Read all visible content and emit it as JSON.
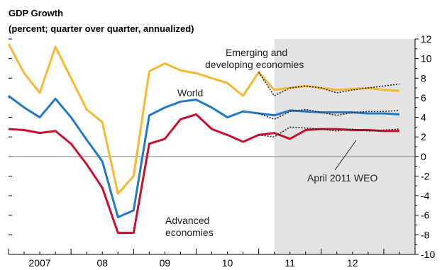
{
  "chart_data": {
    "type": "line",
    "title": "GDP Growth",
    "subtitle": "(percent; quarter over quarter, annualized)",
    "ylim": [
      -10,
      12
    ],
    "y_ticks": [
      -10,
      -8,
      -6,
      -4,
      -2,
      0,
      2,
      4,
      6,
      8,
      10,
      12
    ],
    "x_range": [
      2006.5,
      2013.0
    ],
    "x_tick_labels": [
      {
        "label": "2007",
        "x": 2007.0
      },
      {
        "label": "08",
        "x": 2008.0
      },
      {
        "label": "09",
        "x": 2009.0
      },
      {
        "label": "10",
        "x": 2010.0
      },
      {
        "label": "11",
        "x": 2011.0
      },
      {
        "label": "12",
        "x": 2012.0
      }
    ],
    "projection_start": 2010.75,
    "zero_line": true,
    "x": [
      2006.5,
      2006.75,
      2007.0,
      2007.25,
      2007.5,
      2007.75,
      2008.0,
      2008.25,
      2008.5,
      2008.75,
      2009.0,
      2009.25,
      2009.5,
      2009.75,
      2010.0,
      2010.25,
      2010.5,
      2010.75,
      2011.0,
      2011.25,
      2011.5,
      2011.75,
      2012.0,
      2012.25,
      2012.5,
      2012.75
    ],
    "series": [
      {
        "name": "Emerging and developing economies",
        "color": "#F7B731",
        "values": [
          11.5,
          8.5,
          6.5,
          11.2,
          8.0,
          4.8,
          3.5,
          -3.8,
          -2.0,
          8.7,
          9.5,
          8.8,
          8.5,
          8.0,
          7.5,
          6.2,
          8.6,
          6.8,
          7.0,
          7.2,
          7.0,
          6.8,
          6.9,
          7.0,
          6.8,
          6.7
        ]
      },
      {
        "name": "World",
        "color": "#1F78C8",
        "values": [
          6.2,
          5.0,
          4.0,
          5.9,
          4.0,
          1.7,
          -0.5,
          -6.2,
          -5.5,
          4.2,
          5.0,
          5.6,
          5.8,
          5.0,
          4.0,
          4.6,
          4.4,
          4.2,
          4.7,
          4.6,
          4.5,
          4.5,
          4.5,
          4.4,
          4.4,
          4.3
        ]
      },
      {
        "name": "Advanced economies",
        "color": "#C8102E",
        "values": [
          2.8,
          2.7,
          2.4,
          2.6,
          1.3,
          -0.8,
          -3.2,
          -7.8,
          -7.8,
          1.3,
          1.8,
          3.8,
          4.3,
          2.8,
          2.2,
          1.5,
          2.2,
          2.4,
          1.8,
          2.7,
          2.8,
          2.8,
          2.7,
          2.7,
          2.6,
          2.6
        ]
      }
    ],
    "weo_projection": {
      "name": "April 2011 WEO",
      "color": "#222222",
      "x": [
        2010.5,
        2010.75,
        2011.0,
        2011.25,
        2011.5,
        2011.75,
        2012.0,
        2012.25,
        2012.5,
        2012.75
      ],
      "series": [
        [
          8.6,
          6.2,
          7.0,
          7.2,
          7.0,
          6.5,
          6.8,
          7.0,
          7.2,
          7.4
        ],
        [
          4.4,
          3.8,
          4.6,
          4.8,
          4.5,
          4.2,
          4.5,
          4.6,
          4.6,
          4.7
        ],
        [
          2.2,
          2.0,
          3.0,
          2.9,
          2.8,
          2.6,
          2.8,
          2.6,
          2.7,
          2.8
        ]
      ]
    },
    "annotations": [
      {
        "id": "emerging-1",
        "text": "Emerging and"
      },
      {
        "id": "emerging-2",
        "text": "developing economies"
      },
      {
        "id": "world",
        "text": "World"
      },
      {
        "id": "advanced-1",
        "text": "Advanced"
      },
      {
        "id": "advanced-2",
        "text": "economies"
      },
      {
        "id": "weo",
        "text": "April 2011 WEO"
      }
    ],
    "projection_shade_color": "#E3E3E3",
    "grid": false
  }
}
